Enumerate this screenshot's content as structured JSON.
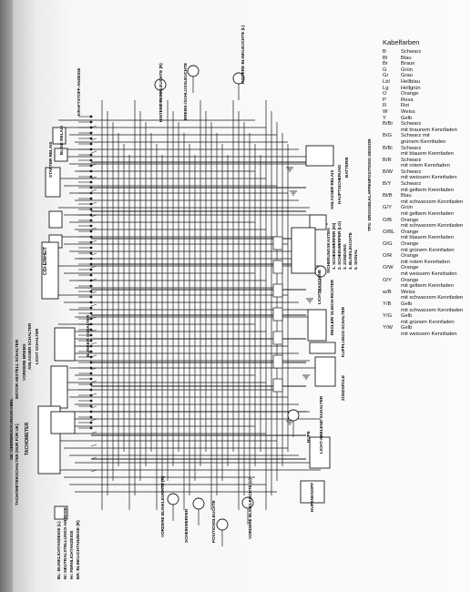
{
  "legend": {
    "title": "Kabelfarben",
    "entries": [
      {
        "code": "B",
        "lines": [
          "Schwarz"
        ]
      },
      {
        "code": "Bl",
        "lines": [
          "Blau"
        ]
      },
      {
        "code": "Br",
        "lines": [
          "Braun"
        ]
      },
      {
        "code": "G",
        "lines": [
          "Grün"
        ]
      },
      {
        "code": "Gr",
        "lines": [
          "Grau"
        ]
      },
      {
        "code": "Lbl",
        "lines": [
          "Hellblau"
        ]
      },
      {
        "code": "Lg",
        "lines": [
          "Hellgrün"
        ]
      },
      {
        "code": "O",
        "lines": [
          "Orange"
        ]
      },
      {
        "code": "P",
        "lines": [
          "Rosa"
        ]
      },
      {
        "code": "R",
        "lines": [
          "Rot"
        ]
      },
      {
        "code": "W",
        "lines": [
          "Weiss"
        ]
      },
      {
        "code": "Y",
        "lines": [
          "Gelb"
        ]
      },
      {
        "code": "B/Br",
        "lines": [
          "Schwarz",
          "mit braunem Kennfaden"
        ]
      },
      {
        "code": "B/G",
        "lines": [
          "Schwarz mit",
          "grünem Kennfaden"
        ]
      },
      {
        "code": "B/Bl",
        "lines": [
          "Schwarz",
          "mit blauem Kennfaden"
        ]
      },
      {
        "code": "B/R",
        "lines": [
          "Schwarz",
          "mit rotem Kennfaden"
        ]
      },
      {
        "code": "B/W",
        "lines": [
          "Schwarz",
          "mit weissem Kennfaden"
        ]
      },
      {
        "code": "B/Y",
        "lines": [
          "Schwarz",
          "mit gelbem Kennfaden"
        ]
      },
      {
        "code": "Bl/B",
        "lines": [
          "Blau",
          "mit schwarzem Kennfaden"
        ]
      },
      {
        "code": "G/Y",
        "lines": [
          "Grün",
          "mit gelbem Kennfaden"
        ]
      },
      {
        "code": "O/B",
        "lines": [
          "Orange",
          "mit schwarzem Kennfaden"
        ]
      },
      {
        "code": "O/BL",
        "lines": [
          "Orange",
          "mit blauem Kennfaden"
        ]
      },
      {
        "code": "O/G",
        "lines": [
          "Orange",
          "mit grünem Kennfaden"
        ]
      },
      {
        "code": "O/R",
        "lines": [
          "Orange",
          "mit rotem Kennfaden"
        ]
      },
      {
        "code": "O/W",
        "lines": [
          "Orange",
          "mit weissem Kennfaden"
        ]
      },
      {
        "code": "O/Y",
        "lines": [
          "Orange",
          "mit gelbem Kennfaden"
        ]
      },
      {
        "code": "w/B",
        "lines": [
          "Weiss",
          "mit schwarzem Kennfaden"
        ]
      },
      {
        "code": "Y/B",
        "lines": [
          "Gelb",
          "mit schwarzem Kennfaden"
        ]
      },
      {
        "code": "Y/G",
        "lines": [
          "Gelb",
          "mit grünem Kennfaden"
        ]
      },
      {
        "code": "Y/W",
        "lines": [
          "Gelb",
          "mit weissem Kennfaden"
        ]
      }
    ]
  },
  "labels": {
    "hintere_blinkleuchte_r": "HINTERE BLINKLEUCHTE (R)",
    "hintere_blinkleuchte_l": "HINTERE BLINKLEUCHTE (L)",
    "brems_schlussleuchte": "BREMS-/SCHLUSSLEUCHTE",
    "kraftstoff_anzeige": "KRAFTSTOFF-ANZEIGE",
    "blink_relais": "BLINK RELAIS",
    "starter_relais": "STARTER RELAIS",
    "cdi_einheit": "CDI-EINHEIT",
    "batterie": "BATTERIE",
    "hauptsicherung": "HAUPTSICHERUNG",
    "anlasser_relais": "ANLASSER RELAIS",
    "tps": "TPS: DROSSELKLAPPENPOSITIONS SENSOR",
    "sicherungskasten": "SICHERUNGSKASTEN",
    "scheinwerfer_hi": "1. SCHEINWERFER (HI)",
    "scheinwerfer_lo": "2. SCHEINWERFER (LO)",
    "zuendung": "3. ZÜNDUNG",
    "blinkleuchte": "4. BLINKLEUCHTE",
    "signal": "5. SIGNAL",
    "lichtmaschine": "LICHTMASCHINE",
    "regler_gleichrichter": "REGLER/ GLEICH-RICHTER",
    "kupplungs_schalter": "KUPPLUNGS-SCHALTER",
    "zuendspule": "ZÜNDSPULE",
    "tachometer": "TACHOMETER",
    "tachometerschalter": "TACHOMETERSCHALTER (NUR FÜR UK)",
    "motor_abstell_schalter": "MOTOR ABSTELL SCHALTER",
    "anlasser_schalter": "ANLASSER SCHALTER",
    "licht_schalter": "LICHT SCHALTER",
    "vordere_bremse": "VORDERE BREMS",
    "blinker_schalter": "BLINKER SCHALTER",
    "hupenknopf": "HUPENKNOPF",
    "hupe": "HUPE",
    "abblend_schalter": "LICHT-ABBLEND SCHALTER",
    "vordere_blinkleuchte_r": "VORDERE BLINKLEUCHTE (R)",
    "vordere_blinkleuchte_l": "VORDERE BLINKLEUCHTE (L)",
    "scheinwerfer": "SCHEINWERFER",
    "positionsleuchte": "POSITIONSLEUCHTE",
    "anzeige_list_title": "SB: ÜBERBRÜCKUNGSKABEL",
    "anzeige_1": "BL: BLINKLICHTANZEIGE (L)",
    "anzeige_2": "NI: NEUTRALSTELLUNGS-ANZEIGE",
    "anzeige_3": "HI: FERNLICHTANZEIGE",
    "anzeige_4": "BR: BLINKLICHTANZEIGE (R)"
  }
}
